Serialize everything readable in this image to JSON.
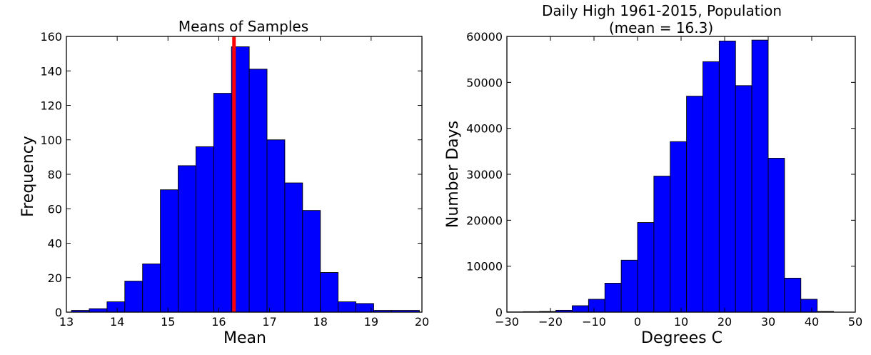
{
  "chart_data": [
    {
      "type": "bar",
      "title": "Means of Samples",
      "xlabel": "Mean",
      "ylabel": "Frequency",
      "xlim": [
        13,
        20
      ],
      "ylim": [
        0,
        160
      ],
      "xticks": [
        13,
        14,
        15,
        16,
        17,
        18,
        19,
        20
      ],
      "yticks": [
        0,
        20,
        40,
        60,
        80,
        100,
        120,
        140,
        160
      ],
      "grid": false,
      "colors": {
        "bar": "#0000ff",
        "edge": "#000000",
        "mean_line": "#ff0000"
      },
      "bins": [
        {
          "x0": 13.1,
          "x1": 13.45,
          "count": 1
        },
        {
          "x0": 13.45,
          "x1": 13.8,
          "count": 2
        },
        {
          "x0": 13.8,
          "x1": 14.15,
          "count": 6
        },
        {
          "x0": 14.15,
          "x1": 14.5,
          "count": 18
        },
        {
          "x0": 14.5,
          "x1": 14.85,
          "count": 28
        },
        {
          "x0": 14.85,
          "x1": 15.2,
          "count": 71
        },
        {
          "x0": 15.2,
          "x1": 15.55,
          "count": 85
        },
        {
          "x0": 15.55,
          "x1": 15.9,
          "count": 96
        },
        {
          "x0": 15.9,
          "x1": 16.25,
          "count": 127
        },
        {
          "x0": 16.25,
          "x1": 16.6,
          "count": 154
        },
        {
          "x0": 16.6,
          "x1": 16.95,
          "count": 141
        },
        {
          "x0": 16.95,
          "x1": 17.3,
          "count": 100
        },
        {
          "x0": 17.3,
          "x1": 17.65,
          "count": 75
        },
        {
          "x0": 17.65,
          "x1": 18.0,
          "count": 59
        },
        {
          "x0": 18.0,
          "x1": 18.35,
          "count": 23
        },
        {
          "x0": 18.35,
          "x1": 18.7,
          "count": 6
        },
        {
          "x0": 18.7,
          "x1": 19.05,
          "count": 5
        },
        {
          "x0": 19.05,
          "x1": 19.4,
          "count": 1
        },
        {
          "x0": 19.4,
          "x1": 19.95,
          "count": 1
        }
      ],
      "vline": {
        "x": 16.3
      }
    },
    {
      "type": "bar",
      "title": "Daily High 1961-2015, Population",
      "subtitle": "(mean = 16.3)",
      "xlabel": "Degrees C",
      "ylabel": "Number Days",
      "xlim": [
        -30,
        50
      ],
      "ylim": [
        0,
        60000
      ],
      "xticks": [
        -30,
        -20,
        -10,
        0,
        10,
        20,
        30,
        40,
        50
      ],
      "xtick_labels": [
        "−30",
        "−20",
        "−10",
        "0",
        "10",
        "20",
        "30",
        "40",
        "50"
      ],
      "yticks": [
        0,
        10000,
        20000,
        30000,
        40000,
        50000,
        60000
      ],
      "grid": false,
      "colors": {
        "bar": "#0000ff",
        "edge": "#000000"
      },
      "bins": [
        {
          "x0": -30.0,
          "x1": -26.25,
          "count": 50
        },
        {
          "x0": -26.25,
          "x1": -22.5,
          "count": 100
        },
        {
          "x0": -22.5,
          "x1": -18.75,
          "count": 150
        },
        {
          "x0": -18.75,
          "x1": -15.0,
          "count": 400
        },
        {
          "x0": -15.0,
          "x1": -11.25,
          "count": 1400
        },
        {
          "x0": -11.25,
          "x1": -7.5,
          "count": 2800
        },
        {
          "x0": -7.5,
          "x1": -3.75,
          "count": 6300
        },
        {
          "x0": -3.75,
          "x1": 0.0,
          "count": 11300
        },
        {
          "x0": 0.0,
          "x1": 3.75,
          "count": 19500
        },
        {
          "x0": 3.75,
          "x1": 7.5,
          "count": 29600
        },
        {
          "x0": 7.5,
          "x1": 11.25,
          "count": 37100
        },
        {
          "x0": 11.25,
          "x1": 15.0,
          "count": 47000
        },
        {
          "x0": 15.0,
          "x1": 18.75,
          "count": 54500
        },
        {
          "x0": 18.75,
          "x1": 22.5,
          "count": 59000
        },
        {
          "x0": 22.5,
          "x1": 26.25,
          "count": 49300
        },
        {
          "x0": 26.25,
          "x1": 30.0,
          "count": 59200
        },
        {
          "x0": 30.0,
          "x1": 33.75,
          "count": 33500
        },
        {
          "x0": 33.75,
          "x1": 37.5,
          "count": 7400
        },
        {
          "x0": 37.5,
          "x1": 41.25,
          "count": 2800
        },
        {
          "x0": 41.25,
          "x1": 45.0,
          "count": 150
        }
      ]
    }
  ]
}
